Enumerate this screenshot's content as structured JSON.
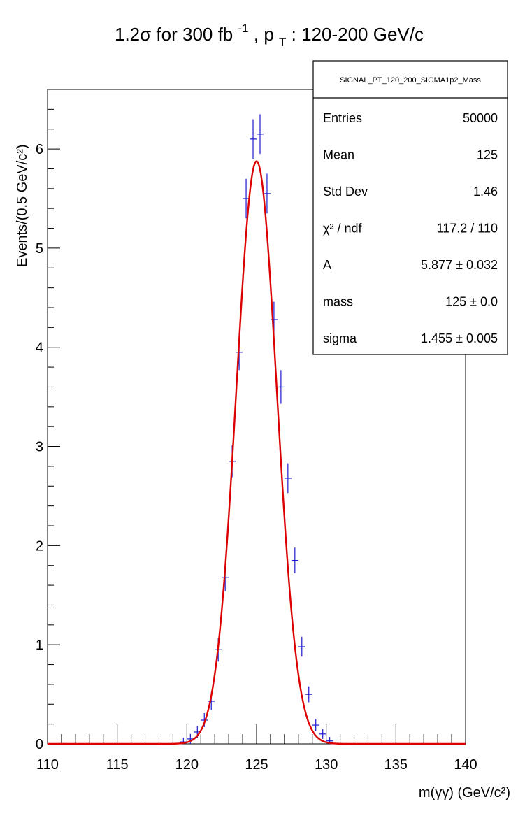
{
  "title": {
    "prefix": "1.2σ  for 300 fb",
    "superscript": "-1",
    "mid": ", p",
    "subscript": "T",
    "suffix": ": 120-200  GeV/c"
  },
  "stats": {
    "name": "SIGNAL_PT_120_200_SIGMA1p2_Mass",
    "rows": [
      {
        "label": "Entries",
        "value": "50000"
      },
      {
        "label": "Mean",
        "value": "125"
      },
      {
        "label": "Std Dev",
        "value": "1.46"
      },
      {
        "label": "χ² / ndf",
        "value": "117.2 / 110"
      },
      {
        "label": "A",
        "value": "5.877 ± 0.032"
      },
      {
        "label": "mass",
        "value": "125 ± 0.0"
      },
      {
        "label": "sigma",
        "value": "1.455 ± 0.005"
      }
    ]
  },
  "colors": {
    "histogram": "#1a1acc",
    "fit": "#dd0000",
    "axis": "#000000"
  },
  "chart_data": {
    "type": "scatter",
    "xlabel": "m(γγ) (GeV/c²)",
    "ylabel": "Events/(0.5 GeV/c²)",
    "xlim": [
      110,
      140
    ],
    "ylim": [
      0,
      6.6
    ],
    "bin_width": 0.5,
    "x_ticks": [
      110,
      115,
      120,
      125,
      130,
      135,
      140
    ],
    "y_ticks": [
      0,
      1,
      2,
      3,
      4,
      5,
      6
    ],
    "grid": false,
    "legend": "top-right",
    "histogram": {
      "x": [
        119.75,
        120.25,
        120.75,
        121.25,
        121.75,
        122.25,
        122.75,
        123.25,
        123.75,
        124.25,
        124.75,
        125.25,
        125.75,
        126.25,
        126.75,
        127.25,
        127.75,
        128.25,
        128.75,
        129.25,
        129.75,
        130.25
      ],
      "y": [
        0.02,
        0.05,
        0.12,
        0.24,
        0.43,
        0.95,
        1.68,
        2.85,
        3.95,
        5.5,
        6.1,
        6.15,
        5.55,
        4.28,
        3.6,
        2.68,
        1.85,
        0.98,
        0.5,
        0.19,
        0.1,
        0.03
      ],
      "err": [
        0.04,
        0.05,
        0.06,
        0.07,
        0.09,
        0.12,
        0.14,
        0.16,
        0.18,
        0.2,
        0.2,
        0.2,
        0.2,
        0.18,
        0.17,
        0.15,
        0.13,
        0.1,
        0.08,
        0.06,
        0.05,
        0.04
      ]
    },
    "fit": {
      "function": "gaussian",
      "A": 5.877,
      "mass": 125,
      "sigma": 1.455
    }
  }
}
